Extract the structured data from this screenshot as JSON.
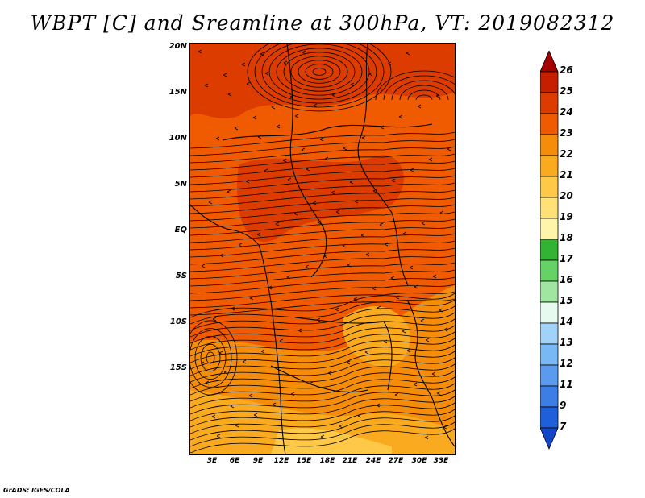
{
  "title": "WBPT [C] and Sreamline at 300hPa, VT: 2019082312",
  "footer": "GrADS: IGES/COLA",
  "map": {
    "lat_labels": [
      "20N",
      "15N",
      "10N",
      "5N",
      "EQ",
      "5S",
      "10S",
      "15S"
    ],
    "lon_labels": [
      "3E",
      "6E",
      "9E",
      "12E",
      "15E",
      "18E",
      "21E",
      "24E",
      "27E",
      "30E",
      "33E"
    ]
  },
  "colorbar": {
    "levels": [
      "26",
      "25",
      "24",
      "23",
      "22",
      "21",
      "20",
      "19",
      "18",
      "17",
      "16",
      "15",
      "14",
      "13",
      "12",
      "11",
      "9",
      "7"
    ],
    "colors": [
      "#a50000",
      "#c81e00",
      "#dc3c00",
      "#f05a00",
      "#f58c0a",
      "#faaa1e",
      "#ffc846",
      "#ffe178",
      "#fff5aa",
      "#32b432",
      "#64d264",
      "#a0e6a0",
      "#e6faf0",
      "#a0d2fa",
      "#78b9f5",
      "#5a9bf0",
      "#3c7de6",
      "#1e5fdc",
      "#1446c8"
    ]
  },
  "field_colors": {
    "hot": "#dc3c00",
    "warm": "#f05a00",
    "mid": "#f58c0a",
    "cool": "#faaa1e",
    "coolest": "#ffc846"
  },
  "streamline_color": "#000000"
}
